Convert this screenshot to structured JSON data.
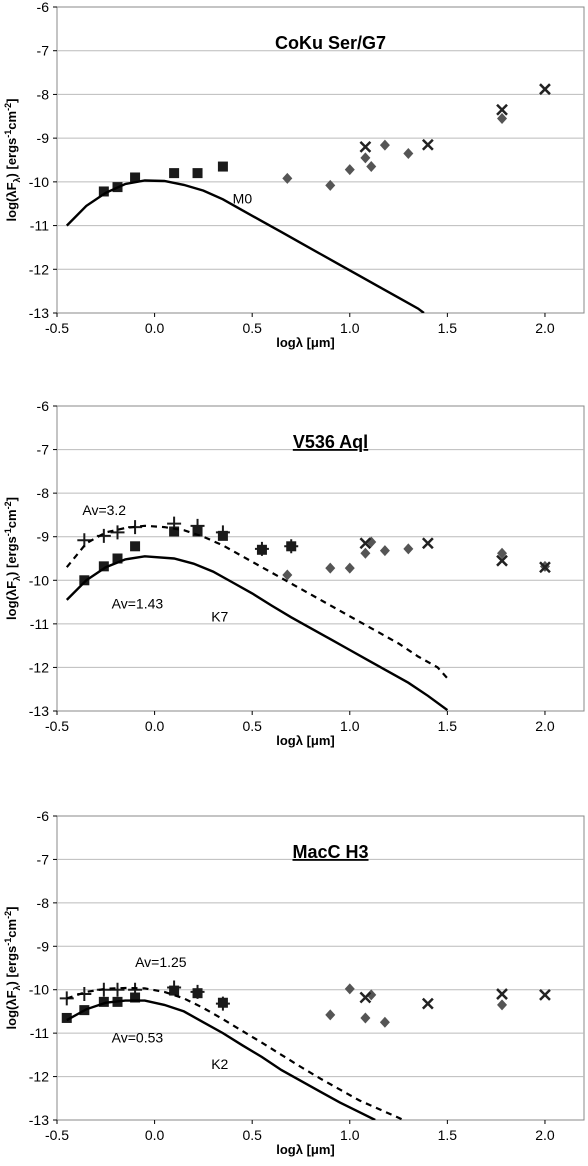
{
  "chart_data": [
    {
      "type": "scatter",
      "title": "CoKu Ser/G7",
      "title_underline": false,
      "xlabel": "logλ [μm]",
      "ylabel": "log(λF",
      "ylabel_sub": "λ",
      "ylabel_mid": ") [ergs",
      "ylabel_sup1": "-1",
      "ylabel_mid2": "cm",
      "ylabel_sup2": "-2",
      "ylabel_end": "]",
      "xlim": [
        -0.5,
        2.2
      ],
      "ylim": [
        -13,
        -6
      ],
      "xticks": [
        -0.5,
        0.0,
        0.5,
        1.0,
        1.5,
        2.0
      ],
      "xtick_labels": [
        "-0.5",
        "0.0",
        "0.5",
        "1.0",
        "1.5",
        "2.0"
      ],
      "yticks": [
        -13,
        -12,
        -11,
        -10,
        -9,
        -8,
        -7,
        -6
      ],
      "ytick_labels": [
        "-13",
        "-12",
        "-11",
        "-10",
        "-9",
        "-8",
        "-7",
        "-6"
      ],
      "grid": true,
      "series": [
        {
          "marker": "square",
          "points": [
            [
              -0.26,
              -10.22
            ],
            [
              -0.19,
              -10.12
            ],
            [
              -0.1,
              -9.9
            ],
            [
              0.1,
              -9.8
            ],
            [
              0.22,
              -9.8
            ],
            [
              0.35,
              -9.65
            ]
          ]
        },
        {
          "marker": "diamond",
          "points": [
            [
              0.68,
              -9.92
            ],
            [
              0.9,
              -10.08
            ],
            [
              1.0,
              -9.72
            ],
            [
              1.08,
              -9.45
            ],
            [
              1.11,
              -9.65
            ],
            [
              1.18,
              -9.16
            ],
            [
              1.3,
              -9.35
            ],
            [
              1.78,
              -8.55
            ]
          ]
        },
        {
          "marker": "x",
          "points": [
            [
              1.08,
              -9.2
            ],
            [
              1.4,
              -9.15
            ],
            [
              1.78,
              -8.35
            ],
            [
              2.0,
              -7.88
            ]
          ]
        },
        {
          "marker": "line-solid",
          "points": [
            [
              -0.45,
              -11.0
            ],
            [
              -0.35,
              -10.55
            ],
            [
              -0.25,
              -10.25
            ],
            [
              -0.15,
              -10.05
            ],
            [
              -0.05,
              -9.97
            ],
            [
              0.05,
              -9.98
            ],
            [
              0.15,
              -10.07
            ],
            [
              0.25,
              -10.2
            ],
            [
              0.35,
              -10.4
            ],
            [
              0.45,
              -10.65
            ],
            [
              0.55,
              -10.9
            ],
            [
              0.65,
              -11.15
            ],
            [
              0.75,
              -11.4
            ],
            [
              0.85,
              -11.65
            ],
            [
              0.95,
              -11.9
            ],
            [
              1.05,
              -12.15
            ],
            [
              1.15,
              -12.4
            ],
            [
              1.25,
              -12.65
            ],
            [
              1.35,
              -12.9
            ],
            [
              1.38,
              -13.0
            ]
          ]
        }
      ],
      "annotations": [
        {
          "text": "M0",
          "x": 0.4,
          "y": -10.5
        }
      ]
    },
    {
      "type": "scatter",
      "title": "V536 Aql",
      "title_underline": true,
      "xlabel": "logλ [μm]",
      "ylabel": "log(λF",
      "ylabel_sub": "λ",
      "ylabel_mid": ") [ergs",
      "ylabel_sup1": "-1",
      "ylabel_mid2": "cm",
      "ylabel_sup2": "-2",
      "ylabel_end": "]",
      "xlim": [
        -0.5,
        2.2
      ],
      "ylim": [
        -13,
        -6
      ],
      "xticks": [
        -0.5,
        0.0,
        0.5,
        1.0,
        1.5,
        2.0
      ],
      "xtick_labels": [
        "-0.5",
        "0.0",
        "0.5",
        "1.0",
        "1.5",
        "2.0"
      ],
      "yticks": [
        -13,
        -12,
        -11,
        -10,
        -9,
        -8,
        -7,
        -6
      ],
      "ytick_labels": [
        "-13",
        "-12",
        "-11",
        "-10",
        "-9",
        "-8",
        "-7",
        "-6"
      ],
      "grid": true,
      "series": [
        {
          "marker": "square",
          "points": [
            [
              -0.36,
              -10.0
            ],
            [
              -0.26,
              -9.68
            ],
            [
              -0.19,
              -9.5
            ],
            [
              -0.1,
              -9.22
            ],
            [
              0.1,
              -8.88
            ],
            [
              0.22,
              -8.88
            ],
            [
              0.35,
              -8.98
            ],
            [
              0.55,
              -9.3
            ],
            [
              0.7,
              -9.22
            ]
          ]
        },
        {
          "marker": "plus",
          "points": [
            [
              -0.36,
              -9.08
            ],
            [
              -0.26,
              -8.98
            ],
            [
              -0.19,
              -8.9
            ],
            [
              -0.1,
              -8.78
            ],
            [
              0.1,
              -8.7
            ],
            [
              0.22,
              -8.75
            ],
            [
              0.35,
              -8.9
            ],
            [
              0.55,
              -9.28
            ],
            [
              0.7,
              -9.22
            ]
          ]
        },
        {
          "marker": "diamond",
          "points": [
            [
              0.68,
              -9.88
            ],
            [
              0.9,
              -9.72
            ],
            [
              1.0,
              -9.72
            ],
            [
              1.08,
              -9.38
            ],
            [
              1.11,
              -9.12
            ],
            [
              1.18,
              -9.32
            ],
            [
              1.3,
              -9.28
            ],
            [
              1.78,
              -9.38
            ],
            [
              2.0,
              -9.68
            ]
          ]
        },
        {
          "marker": "x",
          "points": [
            [
              1.08,
              -9.15
            ],
            [
              1.4,
              -9.15
            ],
            [
              1.78,
              -9.55
            ],
            [
              2.0,
              -9.7
            ]
          ]
        },
        {
          "marker": "line-solid",
          "points": [
            [
              -0.45,
              -10.45
            ],
            [
              -0.35,
              -10.0
            ],
            [
              -0.25,
              -9.7
            ],
            [
              -0.15,
              -9.52
            ],
            [
              -0.05,
              -9.45
            ],
            [
              0.1,
              -9.5
            ],
            [
              0.2,
              -9.62
            ],
            [
              0.3,
              -9.8
            ],
            [
              0.4,
              -10.05
            ],
            [
              0.5,
              -10.3
            ],
            [
              0.6,
              -10.58
            ],
            [
              0.7,
              -10.85
            ],
            [
              0.8,
              -11.1
            ],
            [
              0.9,
              -11.35
            ],
            [
              1.0,
              -11.6
            ],
            [
              1.1,
              -11.85
            ],
            [
              1.2,
              -12.1
            ],
            [
              1.3,
              -12.35
            ],
            [
              1.4,
              -12.65
            ],
            [
              1.5,
              -12.98
            ]
          ]
        },
        {
          "marker": "line-dashed",
          "points": [
            [
              -0.45,
              -9.7
            ],
            [
              -0.35,
              -9.15
            ],
            [
              -0.25,
              -8.9
            ],
            [
              -0.15,
              -8.8
            ],
            [
              -0.05,
              -8.75
            ],
            [
              0.05,
              -8.78
            ],
            [
              0.15,
              -8.85
            ],
            [
              0.25,
              -9.0
            ],
            [
              0.35,
              -9.2
            ],
            [
              0.45,
              -9.45
            ],
            [
              0.55,
              -9.7
            ],
            [
              0.65,
              -9.95
            ],
            [
              0.75,
              -10.2
            ],
            [
              0.85,
              -10.45
            ],
            [
              0.95,
              -10.7
            ],
            [
              1.05,
              -10.95
            ],
            [
              1.15,
              -11.2
            ],
            [
              1.25,
              -11.45
            ],
            [
              1.35,
              -11.75
            ],
            [
              1.45,
              -12.0
            ],
            [
              1.5,
              -12.25
            ]
          ]
        }
      ],
      "annotations": [
        {
          "text": "Av=3.2",
          "x": -0.37,
          "y": -8.5
        },
        {
          "text": "Av=1.43",
          "x": -0.22,
          "y": -10.65
        },
        {
          "text": "K7",
          "x": 0.29,
          "y": -10.95
        }
      ]
    },
    {
      "type": "scatter",
      "title": "MacC H3",
      "title_underline": true,
      "xlabel": "logλ [μm]",
      "ylabel": "log(λF",
      "ylabel_sub": "λ",
      "ylabel_mid": ") [ergs",
      "ylabel_sup1": "-1",
      "ylabel_mid2": "cm",
      "ylabel_sup2": "-2",
      "ylabel_end": "]",
      "xlim": [
        -0.5,
        2.2
      ],
      "ylim": [
        -13,
        -6
      ],
      "xticks": [
        -0.5,
        0.0,
        0.5,
        1.0,
        1.5,
        2.0
      ],
      "xtick_labels": [
        "-0.5",
        "0.0",
        "0.5",
        "1.0",
        "1.5",
        "2.0"
      ],
      "yticks": [
        -13,
        -12,
        -11,
        -10,
        -9,
        -8,
        -7,
        -6
      ],
      "ytick_labels": [
        "-13",
        "-12",
        "-11",
        "-10",
        "-9",
        "-8",
        "-7",
        "-6"
      ],
      "grid": true,
      "series": [
        {
          "marker": "square",
          "points": [
            [
              -0.45,
              -10.65
            ],
            [
              -0.36,
              -10.47
            ],
            [
              -0.26,
              -10.28
            ],
            [
              -0.19,
              -10.28
            ],
            [
              -0.1,
              -10.18
            ],
            [
              0.1,
              -10.02
            ],
            [
              0.22,
              -10.08
            ],
            [
              0.35,
              -10.3
            ]
          ]
        },
        {
          "marker": "plus",
          "points": [
            [
              -0.45,
              -10.2
            ],
            [
              -0.36,
              -10.1
            ],
            [
              -0.26,
              -10.0
            ],
            [
              -0.19,
              -10.0
            ],
            [
              -0.1,
              -10.0
            ],
            [
              0.1,
              -9.95
            ],
            [
              0.22,
              -10.05
            ],
            [
              0.35,
              -10.32
            ]
          ]
        },
        {
          "marker": "diamond",
          "points": [
            [
              0.9,
              -10.58
            ],
            [
              1.0,
              -9.98
            ],
            [
              1.08,
              -10.65
            ],
            [
              1.11,
              -10.12
            ],
            [
              1.18,
              -10.75
            ],
            [
              1.78,
              -10.35
            ]
          ]
        },
        {
          "marker": "x",
          "points": [
            [
              1.08,
              -10.18
            ],
            [
              1.4,
              -10.32
            ],
            [
              1.78,
              -10.1
            ],
            [
              2.0,
              -10.12
            ]
          ]
        },
        {
          "marker": "line-solid",
          "points": [
            [
              -0.45,
              -10.7
            ],
            [
              -0.35,
              -10.45
            ],
            [
              -0.25,
              -10.3
            ],
            [
              -0.15,
              -10.25
            ],
            [
              -0.05,
              -10.25
            ],
            [
              0.05,
              -10.35
            ],
            [
              0.15,
              -10.5
            ],
            [
              0.25,
              -10.75
            ],
            [
              0.35,
              -11.0
            ],
            [
              0.45,
              -11.28
            ],
            [
              0.55,
              -11.55
            ],
            [
              0.65,
              -11.85
            ],
            [
              0.75,
              -12.1
            ],
            [
              0.85,
              -12.35
            ],
            [
              0.95,
              -12.6
            ],
            [
              1.05,
              -12.82
            ],
            [
              1.13,
              -13.0
            ]
          ]
        },
        {
          "marker": "line-dashed",
          "points": [
            [
              -0.45,
              -10.2
            ],
            [
              -0.35,
              -10.05
            ],
            [
              -0.25,
              -9.98
            ],
            [
              -0.15,
              -9.96
            ],
            [
              -0.05,
              -9.97
            ],
            [
              0.05,
              -10.05
            ],
            [
              0.15,
              -10.2
            ],
            [
              0.25,
              -10.42
            ],
            [
              0.35,
              -10.68
            ],
            [
              0.45,
              -10.95
            ],
            [
              0.55,
              -11.22
            ],
            [
              0.65,
              -11.5
            ],
            [
              0.75,
              -11.78
            ],
            [
              0.85,
              -12.05
            ],
            [
              0.95,
              -12.3
            ],
            [
              1.05,
              -12.55
            ],
            [
              1.15,
              -12.75
            ],
            [
              1.25,
              -12.95
            ],
            [
              1.3,
              -13.05
            ]
          ]
        }
      ],
      "annotations": [
        {
          "text": "Av=1.25",
          "x": -0.1,
          "y": -9.48
        },
        {
          "text": "Av=0.53",
          "x": -0.22,
          "y": -11.22
        },
        {
          "text": "K2",
          "x": 0.29,
          "y": -11.82
        }
      ]
    }
  ],
  "colors": {
    "square": "#1a1a1a",
    "diamond": "#555555",
    "x": "#222222",
    "plus": "#1a1a1a",
    "line": "#000000",
    "grid": "#bbbbbb"
  }
}
